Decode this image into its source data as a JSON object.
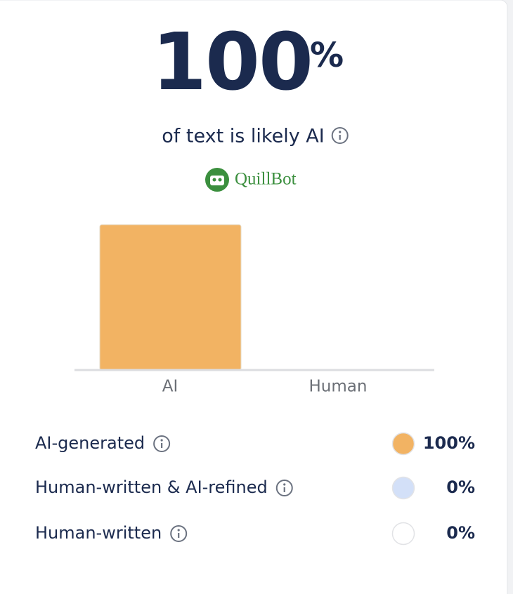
{
  "score": "100",
  "score_unit": "%",
  "subtitle": "of text is likely AI",
  "brand": "QuillBot",
  "chart_data": {
    "type": "bar",
    "categories": [
      "AI",
      "Human"
    ],
    "values": [
      100,
      0
    ],
    "color": "#f2b363",
    "ylim": [
      0,
      100
    ]
  },
  "breakdown": [
    {
      "label": "AI-generated",
      "color": "#f2b363",
      "value_label": "100%"
    },
    {
      "label": "Human-written & AI-refined",
      "color": "#d3e0f8",
      "value_label": "0%"
    },
    {
      "label": "Human-written",
      "color": "#ffffff",
      "value_label": "0%"
    }
  ]
}
